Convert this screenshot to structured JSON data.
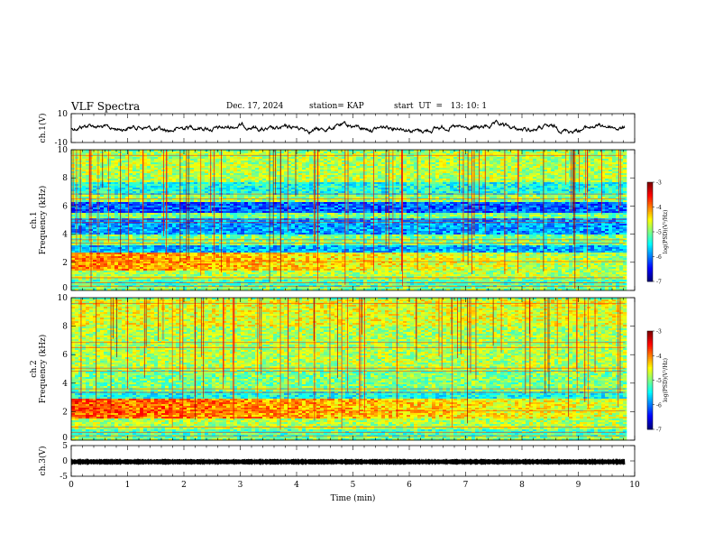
{
  "header": {
    "title": "VLF Spectra",
    "date": "Dec. 17, 2024",
    "station": "station= KAP",
    "start": "start  UT  =   13: 10: 1"
  },
  "chart_data": [
    {
      "type": "line",
      "panel": "ch1-waveform",
      "ylabel": "ch.1(V)",
      "ylim": [
        -10,
        10
      ],
      "yticks": [
        "10",
        "-10"
      ],
      "xlim": [
        0,
        10
      ],
      "x_extent": [
        0,
        9.83
      ],
      "color": "#000000"
    },
    {
      "type": "heatmap",
      "panel": "ch1-spectrogram",
      "ylabel": "ch.1\nFrequency (kHz)",
      "ylim": [
        0,
        10
      ],
      "yticks": [
        "0",
        "2",
        "4",
        "6",
        "8",
        "10"
      ],
      "xlim": [
        0,
        10
      ],
      "x_extent": [
        0,
        9.83
      ],
      "bands": [
        {
          "from": 0.0,
          "to": 0.3,
          "level": 0.5
        },
        {
          "from": 0.3,
          "to": 0.8,
          "level": 0.45
        },
        {
          "from": 0.8,
          "to": 1.5,
          "level": 0.55
        },
        {
          "from": 1.5,
          "to": 2.7,
          "level": 0.75
        },
        {
          "from": 2.7,
          "to": 3.3,
          "level": 0.3
        },
        {
          "from": 3.3,
          "to": 4.0,
          "level": 0.5
        },
        {
          "from": 4.0,
          "to": 5.2,
          "level": 0.28
        },
        {
          "from": 5.2,
          "to": 5.6,
          "level": 0.5
        },
        {
          "from": 5.6,
          "to": 6.4,
          "level": 0.22
        },
        {
          "from": 6.4,
          "to": 6.9,
          "level": 0.52
        },
        {
          "from": 6.9,
          "to": 7.8,
          "level": 0.4
        },
        {
          "from": 7.8,
          "to": 10.0,
          "level": 0.55
        }
      ],
      "colorbar": {
        "label": "log(PSD)(V²/Hz)",
        "range": [
          -7,
          -3
        ],
        "ticks": [
          "-3",
          "-4",
          "-5",
          "-6",
          "-7"
        ]
      }
    },
    {
      "type": "heatmap",
      "panel": "ch2-spectrogram",
      "ylabel": "ch.2\nFrequency (kHz)",
      "ylim": [
        0,
        10
      ],
      "yticks": [
        "0",
        "2",
        "4",
        "6",
        "8",
        "10"
      ],
      "xlim": [
        0,
        10
      ],
      "x_extent": [
        0,
        9.83
      ],
      "bands": [
        {
          "from": 0.0,
          "to": 0.3,
          "level": 0.5
        },
        {
          "from": 0.3,
          "to": 0.8,
          "level": 0.45
        },
        {
          "from": 0.8,
          "to": 1.6,
          "level": 0.55
        },
        {
          "from": 1.6,
          "to": 3.0,
          "level": 0.8
        },
        {
          "from": 3.0,
          "to": 3.5,
          "level": 0.4
        },
        {
          "from": 3.5,
          "to": 5.0,
          "level": 0.5
        },
        {
          "from": 5.0,
          "to": 8.0,
          "level": 0.55
        },
        {
          "from": 8.0,
          "to": 10.0,
          "level": 0.6
        }
      ],
      "colorbar": {
        "label": "log(PSD)(V²/Hz)",
        "range": [
          -7,
          -3
        ],
        "ticks": [
          "-3",
          "-4",
          "-5",
          "-6",
          "-7"
        ]
      }
    },
    {
      "type": "line",
      "panel": "ch3-waveform",
      "ylabel": "ch.3(V)",
      "ylim": [
        -5,
        5
      ],
      "yticks": [
        "5",
        "0",
        "-5"
      ],
      "xlim": [
        0,
        10
      ],
      "x_extent": [
        0,
        9.83
      ],
      "xlabel": "Time (min)",
      "xticks": [
        "0",
        "1",
        "2",
        "3",
        "4",
        "5",
        "6",
        "7",
        "8",
        "9",
        "10"
      ],
      "color": "#000000"
    }
  ]
}
